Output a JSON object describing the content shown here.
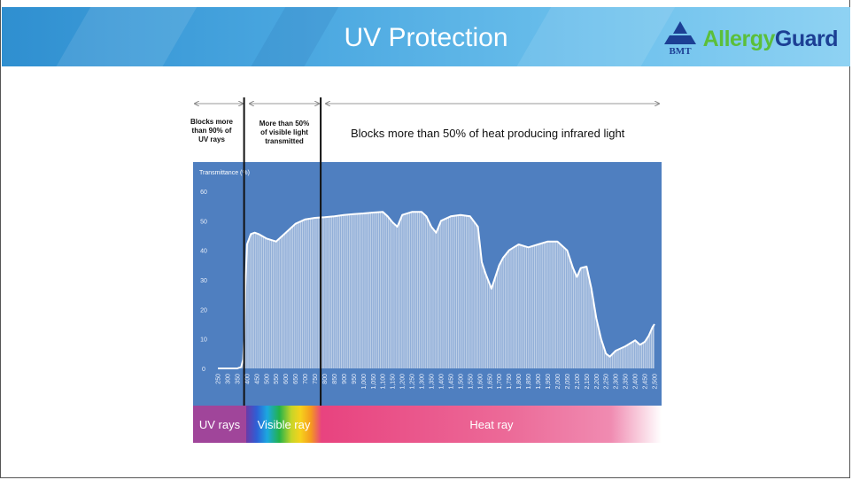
{
  "slide": {
    "title": "UV Protection",
    "logo": {
      "mark_text": "BMT",
      "word_1": "Allergy",
      "word_2": "Guard",
      "icon": "bmt-triangle-logo-icon"
    },
    "annotations": {
      "uv": [
        "Blocks more",
        "than 90% of",
        "UV rays"
      ],
      "visible": [
        "More than 50%",
        "of visible light",
        "transmitted"
      ],
      "infrared": "Blocks more than 50% of heat producing infrared light"
    },
    "bands": [
      {
        "label": "UV rays",
        "color": "#a0459a"
      },
      {
        "label": "Visible ray",
        "color": "spectrum"
      },
      {
        "label": "Heat ray",
        "color": "#e8437f"
      }
    ],
    "colors": {
      "plot_bg": "#4f7fc0",
      "curve": "#ffffff",
      "header_accent": "#3a9ad9"
    }
  },
  "chart_data": {
    "type": "area",
    "title": "",
    "xlabel": "",
    "ylabel": "Transmittance (%)",
    "xlim": [
      250,
      2500
    ],
    "ylim": [
      0,
      60
    ],
    "yticks": [
      0,
      10,
      20,
      30,
      40,
      50,
      60
    ],
    "xticks": [
      250,
      300,
      350,
      400,
      450,
      500,
      550,
      600,
      650,
      700,
      750,
      800,
      850,
      900,
      950,
      1000,
      1050,
      1100,
      1150,
      1200,
      1250,
      1300,
      1350,
      1400,
      1450,
      1500,
      1550,
      1600,
      1650,
      1700,
      1750,
      1800,
      1850,
      1900,
      1950,
      2000,
      2050,
      2100,
      2150,
      2200,
      2250,
      2300,
      2350,
      2400,
      2450,
      2500
    ],
    "xtick_labels": [
      "250",
      "300",
      "350",
      "400",
      "450",
      "500",
      "550",
      "600",
      "650",
      "700",
      "750",
      "800",
      "850",
      "900",
      "950",
      "1,000",
      "1,050",
      "1,100",
      "1,150",
      "1,200",
      "1,250",
      "1,300",
      "1,350",
      "1,400",
      "1,450",
      "1,500",
      "1,550",
      "1,600",
      "1,650",
      "1,700",
      "1,750",
      "1,800",
      "1,850",
      "1,900",
      "1,950",
      "2,000",
      "2,050",
      "2,100",
      "2,150",
      "2,200",
      "2,250",
      "2,300",
      "2,350",
      "2,400",
      "2,450",
      "2,500"
    ],
    "region_boundaries": [
      385,
      780
    ],
    "series": [
      {
        "x": [
          250,
          300,
          350,
          370,
          380,
          385,
          390,
          400,
          420,
          440,
          460,
          500,
          550,
          600,
          650,
          700,
          750,
          800,
          850,
          900,
          950,
          1000,
          1050,
          1100,
          1125,
          1150,
          1175,
          1200,
          1250,
          1300,
          1325,
          1350,
          1375,
          1400,
          1450,
          1500,
          1550,
          1590,
          1610,
          1630,
          1660,
          1680,
          1700,
          1720,
          1750,
          1775,
          1800,
          1850,
          1900,
          1950,
          1975,
          2000,
          2050,
          2080,
          2100,
          2120,
          2150,
          2175,
          2200,
          2225,
          2250,
          2270,
          2300,
          2350,
          2400,
          2425,
          2450,
          2470,
          2490,
          2500
        ],
        "y": [
          0,
          0,
          0,
          0.5,
          3,
          10,
          25,
          42,
          45.5,
          46,
          45.5,
          44,
          43,
          46,
          49,
          50.5,
          51,
          51.2,
          51.5,
          52,
          52.3,
          52.5,
          52.8,
          53,
          51.5,
          49.5,
          48,
          52,
          53,
          53,
          51.5,
          48,
          46,
          50,
          51.5,
          52,
          51.5,
          48,
          36,
          32,
          27,
          31,
          35,
          37.5,
          40,
          41,
          42,
          41,
          42,
          43,
          43,
          43,
          40,
          34,
          31,
          34,
          34.5,
          27,
          17,
          10,
          5,
          4,
          6,
          7.5,
          9.5,
          8,
          9,
          11,
          14,
          15
        ]
      }
    ]
  }
}
